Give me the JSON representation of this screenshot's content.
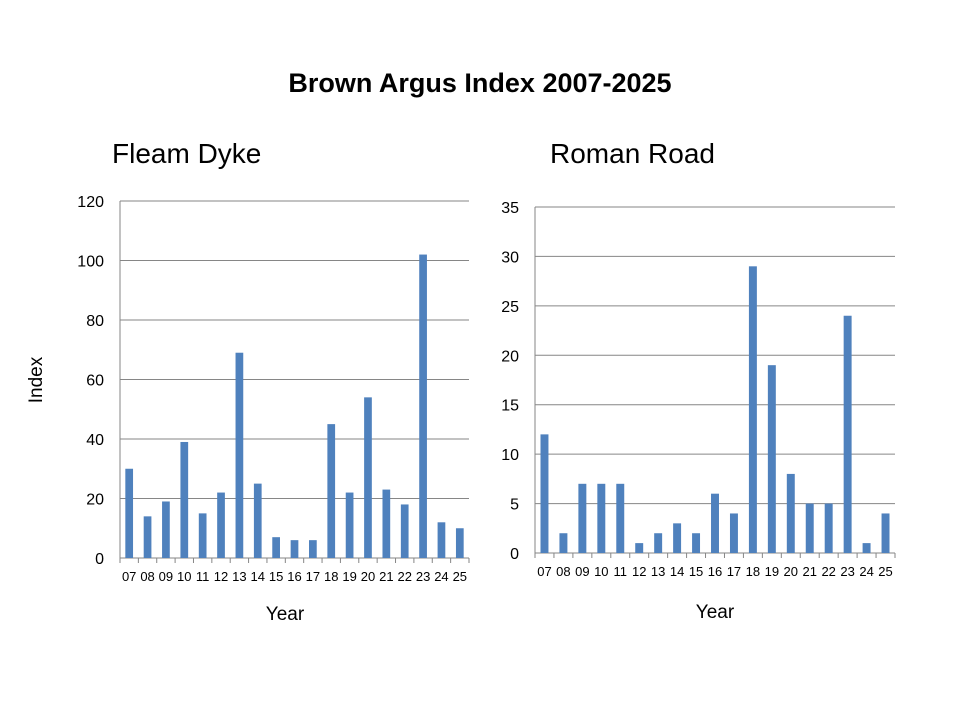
{
  "title": "Brown Argus Index 2007-2025",
  "chart_data": [
    {
      "type": "bar",
      "title": "Fleam Dyke",
      "xlabel": "Year",
      "ylabel": "Index",
      "categories": [
        "07",
        "08",
        "09",
        "10",
        "11",
        "12",
        "13",
        "14",
        "15",
        "16",
        "17",
        "18",
        "19",
        "20",
        "21",
        "22",
        "23",
        "24",
        "25"
      ],
      "values": [
        30,
        14,
        19,
        39,
        15,
        22,
        69,
        25,
        7,
        6,
        6,
        45,
        22,
        54,
        23,
        18,
        102,
        12,
        10
      ],
      "ylim": [
        0,
        120
      ],
      "yticks": [
        0,
        20,
        40,
        60,
        80,
        100,
        120
      ],
      "grid": true,
      "color": "#4f81bd"
    },
    {
      "type": "bar",
      "title": "Roman Road",
      "xlabel": "Year",
      "ylabel": "",
      "categories": [
        "07",
        "08",
        "09",
        "10",
        "11",
        "12",
        "13",
        "14",
        "15",
        "16",
        "17",
        "18",
        "19",
        "20",
        "21",
        "22",
        "23",
        "24",
        "25"
      ],
      "values": [
        12,
        2,
        7,
        7,
        7,
        1,
        2,
        3,
        2,
        6,
        4,
        29,
        19,
        8,
        5,
        5,
        24,
        1,
        4
      ],
      "ylim": [
        0,
        35
      ],
      "yticks": [
        0,
        5,
        10,
        15,
        20,
        25,
        30,
        35
      ],
      "grid": true,
      "color": "#4f81bd"
    }
  ]
}
